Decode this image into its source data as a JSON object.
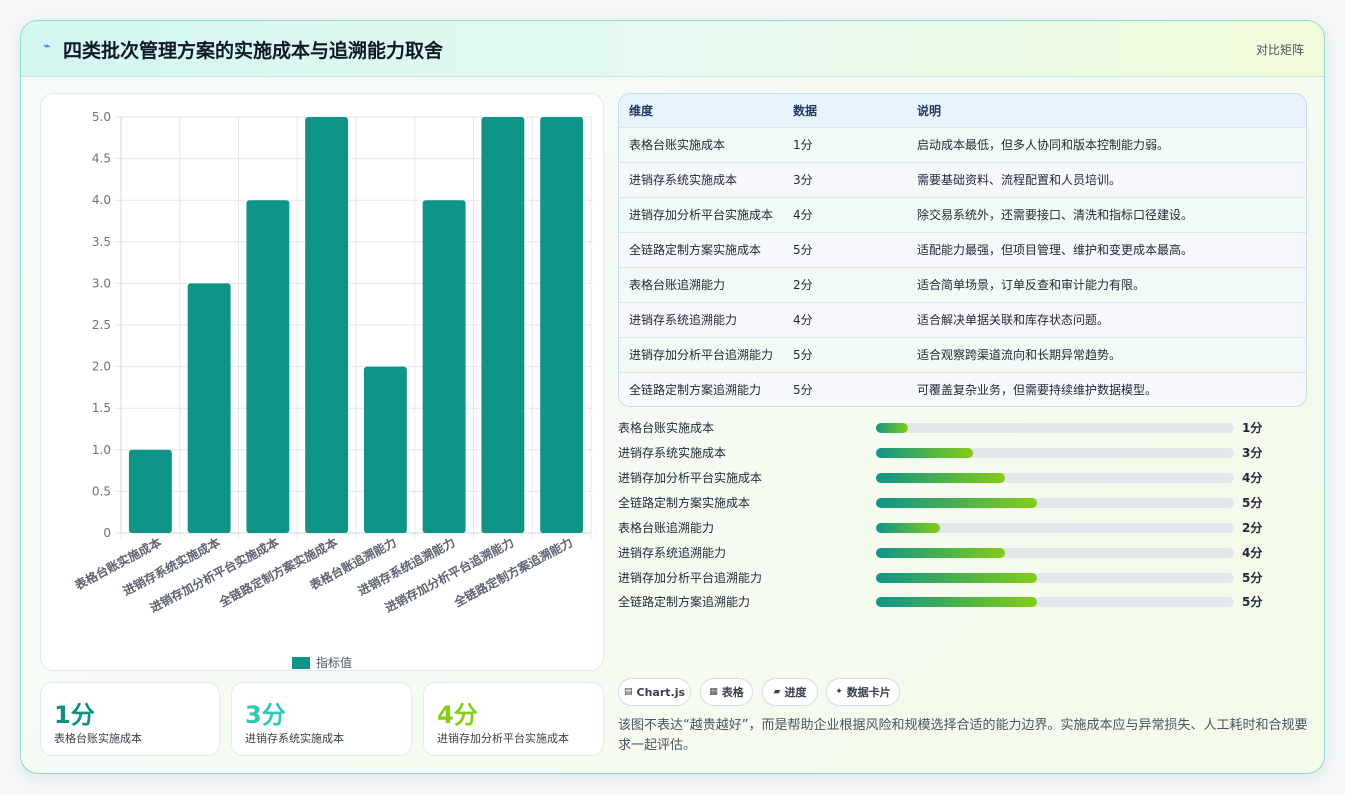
{
  "header": {
    "icon": "lightning-icon",
    "title": "四类批次管理方案的实施成本与追溯能力取舍",
    "tag": "对比矩阵"
  },
  "chart_data": {
    "type": "bar",
    "categories": [
      "表格台账实施成本",
      "进销存系统实施成本",
      "进销存加分析平台实施成本",
      "全链路定制方案实施成本",
      "表格台账追溯能力",
      "进销存系统追溯能力",
      "进销存加分析平台追溯能力",
      "全链路定制方案追溯能力"
    ],
    "series": [
      {
        "name": "指标值",
        "values": [
          1,
          3,
          4,
          5,
          2,
          4,
          5,
          5
        ],
        "color": "#0f9488"
      }
    ],
    "yticks": [
      "0",
      "0.5",
      "1.0",
      "1.5",
      "2.0",
      "2.5",
      "3.0",
      "3.5",
      "4.0",
      "4.5",
      "5.0"
    ],
    "ylim": [
      0,
      5
    ],
    "grid": true,
    "legend": "bottom"
  },
  "stats": [
    {
      "value": "1分",
      "label": "表格台账实施成本",
      "color": "#0f8f80"
    },
    {
      "value": "3分",
      "label": "进销存系统实施成本",
      "color": "#2fc6b3"
    },
    {
      "value": "4分",
      "label": "进销存加分析平台实施成本",
      "color": "#84cc16"
    }
  ],
  "table": {
    "headers": [
      "维度",
      "数据",
      "说明"
    ],
    "rows": [
      {
        "dim": "表格台账实施成本",
        "val": "1分",
        "desc": "启动成本最低，但多人协同和版本控制能力弱。"
      },
      {
        "dim": "进销存系统实施成本",
        "val": "3分",
        "desc": "需要基础资料、流程配置和人员培训。"
      },
      {
        "dim": "进销存加分析平台实施成本",
        "val": "4分",
        "desc": "除交易系统外，还需要接口、清洗和指标口径建设。"
      },
      {
        "dim": "全链路定制方案实施成本",
        "val": "5分",
        "desc": "适配能力最强，但项目管理、维护和变更成本最高。"
      },
      {
        "dim": "表格台账追溯能力",
        "val": "2分",
        "desc": "适合简单场景，订单反查和审计能力有限。"
      },
      {
        "dim": "进销存系统追溯能力",
        "val": "4分",
        "desc": "适合解决单据关联和库存状态问题。"
      },
      {
        "dim": "进销存加分析平台追溯能力",
        "val": "5分",
        "desc": "适合观察跨渠道流向和长期异常趋势。"
      },
      {
        "dim": "全链路定制方案追溯能力",
        "val": "5分",
        "desc": "可覆盖复杂业务，但需要持续维护数据模型。"
      }
    ]
  },
  "progress": [
    {
      "label": "表格台账实施成本",
      "value": "1分",
      "fraction": 0.09
    },
    {
      "label": "进销存系统实施成本",
      "value": "3分",
      "fraction": 0.27
    },
    {
      "label": "进销存加分析平台实施成本",
      "value": "4分",
      "fraction": 0.36
    },
    {
      "label": "全链路定制方案实施成本",
      "value": "5分",
      "fraction": 0.45
    },
    {
      "label": "表格台账追溯能力",
      "value": "2分",
      "fraction": 0.18
    },
    {
      "label": "进销存系统追溯能力",
      "value": "4分",
      "fraction": 0.36
    },
    {
      "label": "进销存加分析平台追溯能力",
      "value": "5分",
      "fraction": 0.45
    },
    {
      "label": "全链路定制方案追溯能力",
      "value": "5分",
      "fraction": 0.45
    }
  ],
  "chips": [
    {
      "label": "Chart.js",
      "icon": "chart-icon"
    },
    {
      "label": "表格",
      "icon": "table-icon"
    },
    {
      "label": "进度",
      "icon": "progress-icon"
    },
    {
      "label": "数据卡片",
      "icon": "sparkle-icon"
    }
  ],
  "note": "该图不表达“越贵越好”，而是帮助企业根据风险和规模选择合适的能力边界。实施成本应与异常损失、人工耗时和合规要求一起评估。"
}
